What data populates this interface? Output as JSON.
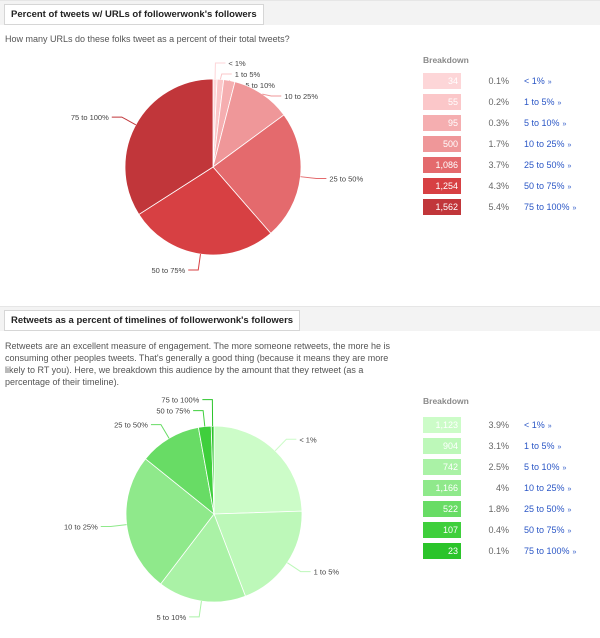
{
  "chart_data": [
    {
      "type": "pie",
      "title": "Percent of tweets w/ URLs of followerwonk's followers",
      "description": "How many URLs do these folks tweet as a percent of their total tweets?",
      "breakdown_title": "Breakdown",
      "categories": [
        "< 1%",
        "1 to 5%",
        "5 to 10%",
        "10 to 25%",
        "25 to 50%",
        "50 to 75%",
        "75 to 100%"
      ],
      "values": [
        34,
        55,
        95,
        500,
        1086,
        1254,
        1562
      ],
      "value_labels": [
        "34",
        "55",
        "95",
        "500",
        "1,086",
        "1,254",
        "1,562"
      ],
      "percent_labels": [
        "0.1%",
        "0.2%",
        "0.3%",
        "1.7%",
        "3.7%",
        "4.3%",
        "5.4%"
      ],
      "colors": [
        "#fdd6d8",
        "#fbc7c9",
        "#f5aeb0",
        "#ef9799",
        "#e46a6d",
        "#d74043",
        "#c1363a"
      ],
      "text_colors": [
        "#ffffff",
        "#ffffff",
        "#ffffff",
        "#ffffff",
        "#ffffff",
        "#ffffff",
        "#ffffff"
      ]
    },
    {
      "type": "pie",
      "title": "Retweets as a percent of timelines of followerwonk's followers",
      "description": "Retweets are an excellent measure of engagement. The more someone retweets, the more he is consuming other peoples tweets. That's generally a good thing (because it means they are more likely to RT you). Here, we breakdown this audience by the amount that they retweet (as a percentage of their timeline).",
      "breakdown_title": "Breakdown",
      "categories": [
        "< 1%",
        "1 to 5%",
        "5 to 10%",
        "10 to 25%",
        "25 to 50%",
        "50 to 75%",
        "75 to 100%"
      ],
      "values": [
        1123,
        904,
        742,
        1166,
        522,
        107,
        23
      ],
      "value_labels": [
        "1,123",
        "904",
        "742",
        "1,166",
        "522",
        "107",
        "23"
      ],
      "percent_labels": [
        "3.9%",
        "3.1%",
        "2.5%",
        "4%",
        "1.8%",
        "0.4%",
        "0.1%"
      ],
      "colors": [
        "#ccfcc8",
        "#bdf8b9",
        "#aaf2a6",
        "#8fe98b",
        "#68dc65",
        "#3fcf3c",
        "#2bc42a"
      ],
      "text_colors": [
        "#ffffff",
        "#ffffff",
        "#ffffff",
        "#ffffff",
        "#ffffff",
        "#ffffff",
        "#ffffff"
      ]
    }
  ]
}
